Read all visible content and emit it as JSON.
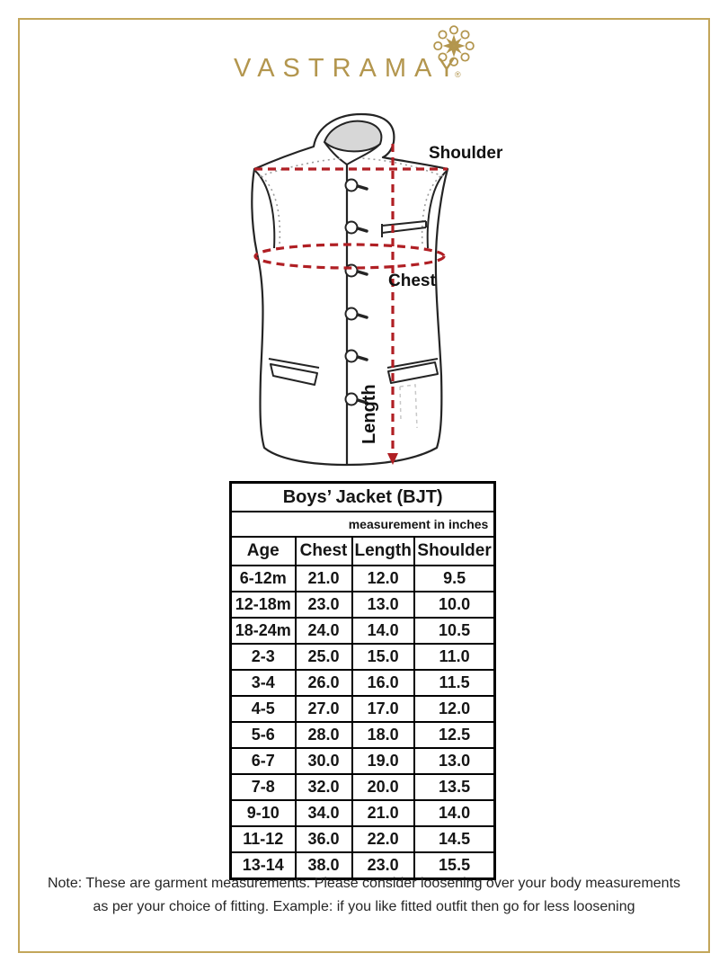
{
  "brand": {
    "name": "VASTRAMAY",
    "registered": "®",
    "ornament_icon": "floral-mandala-icon",
    "gold": "#b3964e"
  },
  "diagram": {
    "garment": "sleeveless nehru jacket sketch",
    "labels": {
      "shoulder": "Shoulder",
      "chest": "Chest",
      "length": "Length"
    },
    "dash_color": "#b01f24"
  },
  "chart_data": {
    "type": "table",
    "title": "Boys’ Jacket (BJT)",
    "subtitle": "measurement in inches",
    "columns": [
      "Age",
      "Chest",
      "Length",
      "Shoulder"
    ],
    "rows": [
      [
        "6-12m",
        "21.0",
        "12.0",
        "9.5"
      ],
      [
        "12-18m",
        "23.0",
        "13.0",
        "10.0"
      ],
      [
        "18-24m",
        "24.0",
        "14.0",
        "10.5"
      ],
      [
        "2-3",
        "25.0",
        "15.0",
        "11.0"
      ],
      [
        "3-4",
        "26.0",
        "16.0",
        "11.5"
      ],
      [
        "4-5",
        "27.0",
        "17.0",
        "12.0"
      ],
      [
        "5-6",
        "28.0",
        "18.0",
        "12.5"
      ],
      [
        "6-7",
        "30.0",
        "19.0",
        "13.0"
      ],
      [
        "7-8",
        "32.0",
        "20.0",
        "13.5"
      ],
      [
        "9-10",
        "34.0",
        "21.0",
        "14.0"
      ],
      [
        "11-12",
        "36.0",
        "22.0",
        "14.5"
      ],
      [
        "13-14",
        "38.0",
        "23.0",
        "15.5"
      ]
    ]
  },
  "note": {
    "line1": "Note: These are garment measurements. Please consider loosening over your body measurements",
    "line2": "as per your choice of fitting. Example: if you like fitted outfit then go for less loosening"
  },
  "colors": {
    "frame_gold": "#c3a65a",
    "dash_red": "#b01f24",
    "table_text": "#151515"
  }
}
